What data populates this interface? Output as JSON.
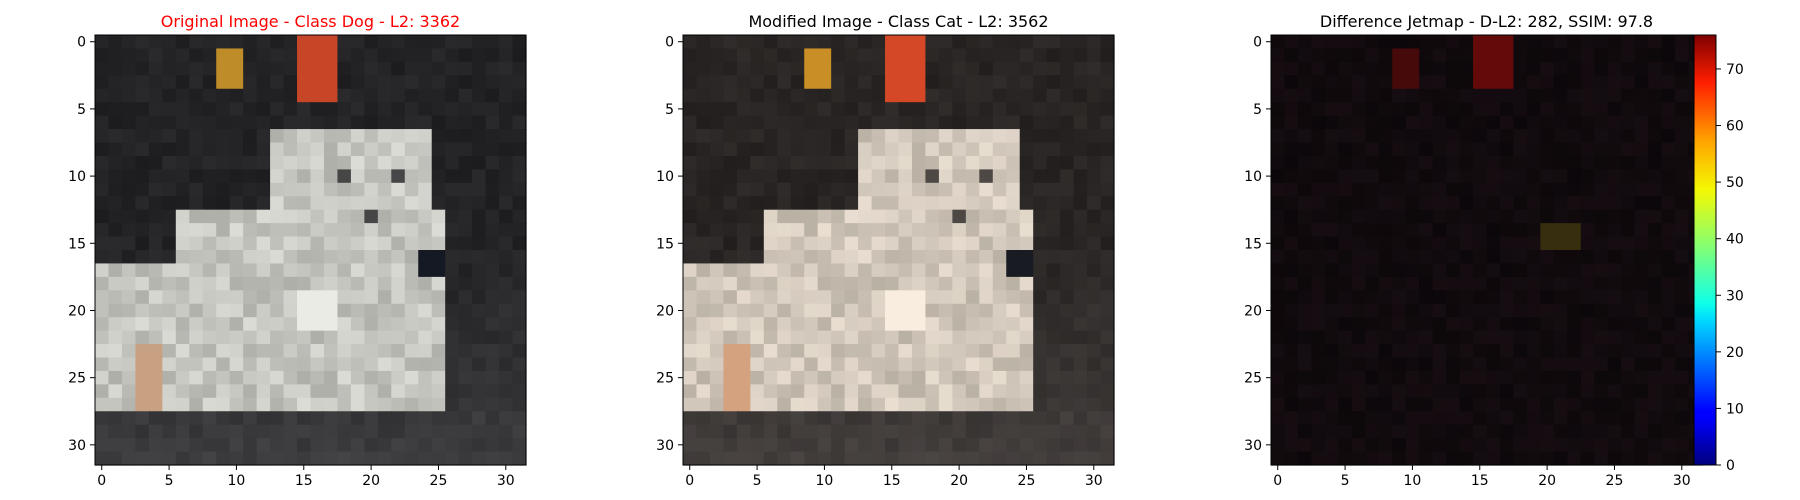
{
  "chart_data": [
    {
      "type": "heatmap",
      "title": "Original Image - Class Dog - L2: 3362",
      "title_color": "#ff0000",
      "xlim": [
        -0.5,
        31.5
      ],
      "ylim": [
        31.5,
        -0.5
      ],
      "xticks": [
        "0",
        "5",
        "10",
        "15",
        "20",
        "25",
        "30"
      ],
      "yticks": [
        "0",
        "5",
        "10",
        "15",
        "20",
        "25",
        "30"
      ],
      "image_size": [
        32,
        32
      ],
      "content": "low-resolution photo of a small white dog on a dark background, orange light spots near top"
    },
    {
      "type": "heatmap",
      "title": "Modified Image - Class Cat - L2: 3562",
      "title_color": "#000000",
      "xlim": [
        -0.5,
        31.5
      ],
      "ylim": [
        31.5,
        -0.5
      ],
      "xticks": [
        "0",
        "5",
        "10",
        "15",
        "20",
        "25",
        "30"
      ],
      "yticks": [
        "0",
        "5",
        "10",
        "15",
        "20",
        "25",
        "30"
      ],
      "image_size": [
        32,
        32
      ],
      "content": "adversarially modified version of the same dog image, slightly warmer and brighter"
    },
    {
      "type": "heatmap",
      "title": "Difference Jetmap - D-L2: 282, SSIM: 97.8",
      "title_color": "#000000",
      "xlim": [
        -0.5,
        31.5
      ],
      "ylim": [
        31.5,
        -0.5
      ],
      "xticks": [
        "0",
        "5",
        "10",
        "15",
        "20",
        "25",
        "30"
      ],
      "yticks": [
        "0",
        "5",
        "10",
        "15",
        "20",
        "25",
        "30"
      ],
      "image_size": [
        32,
        32
      ],
      "content": "mostly near-black difference map with faint dark red spots near the top",
      "colorbar": {
        "colormap": "jet",
        "range": [
          0,
          76
        ],
        "ticks": [
          "0",
          "10",
          "20",
          "30",
          "40",
          "50",
          "60",
          "70"
        ]
      }
    }
  ]
}
